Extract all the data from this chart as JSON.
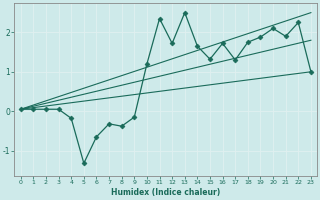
{
  "title": "",
  "xlabel": "Humidex (Indice chaleur)",
  "xlim": [
    -0.5,
    23.5
  ],
  "ylim": [
    -1.65,
    2.75
  ],
  "xticks": [
    0,
    1,
    2,
    3,
    4,
    5,
    6,
    7,
    8,
    9,
    10,
    11,
    12,
    13,
    14,
    15,
    16,
    17,
    18,
    19,
    20,
    21,
    22,
    23
  ],
  "yticks": [
    -1,
    0,
    1,
    2
  ],
  "background_color": "#ceeaea",
  "grid_color": "#e8f8f8",
  "line_color": "#1a6b5a",
  "data_x": [
    0,
    1,
    2,
    3,
    4,
    5,
    6,
    7,
    8,
    9,
    10,
    11,
    12,
    13,
    14,
    15,
    16,
    17,
    18,
    19,
    20,
    21,
    22,
    23
  ],
  "data_y": [
    0.05,
    0.05,
    0.05,
    0.05,
    -0.18,
    -1.32,
    -0.65,
    -0.32,
    -0.38,
    -0.15,
    1.2,
    2.35,
    1.72,
    2.5,
    1.65,
    1.32,
    1.72,
    1.3,
    1.75,
    1.88,
    2.1,
    1.9,
    2.25,
    1.0
  ],
  "line1_x": [
    0,
    23
  ],
  "line1_y": [
    0.05,
    1.0
  ],
  "line2_x": [
    0,
    23
  ],
  "line2_y": [
    0.05,
    2.5
  ],
  "line3_x": [
    0,
    23
  ],
  "line3_y": [
    0.05,
    1.8
  ]
}
